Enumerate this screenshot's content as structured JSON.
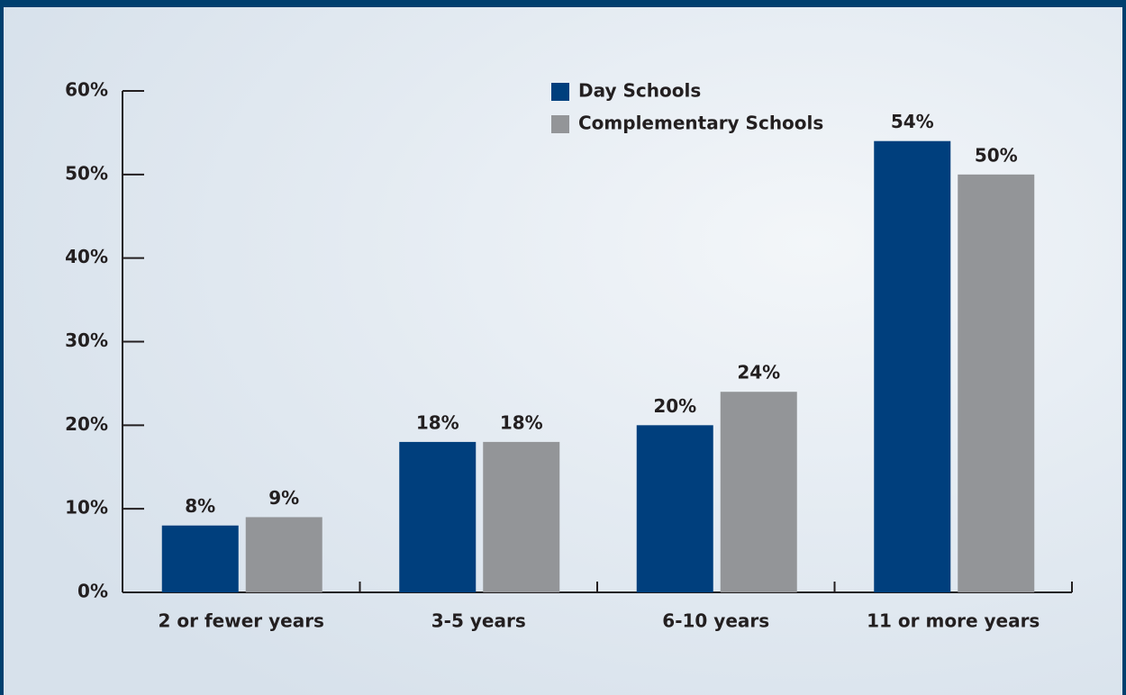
{
  "chart_data": {
    "type": "bar",
    "categories": [
      "2 or fewer years",
      "3-5 years",
      "6-10 years",
      "11 or more years"
    ],
    "series": [
      {
        "name": "Day Schools",
        "color": "#003f7d",
        "values": [
          8,
          18,
          20,
          54
        ],
        "value_labels": [
          "8%",
          "18%",
          "20%",
          "54%"
        ]
      },
      {
        "name": "Complementary Schools",
        "color": "#939598",
        "values": [
          9,
          18,
          24,
          50
        ],
        "value_labels": [
          "9%",
          "18%",
          "24%",
          "50%"
        ]
      }
    ],
    "ylim": [
      0,
      60
    ],
    "yticks": [
      {
        "value": 0,
        "label": "0%"
      },
      {
        "value": 10,
        "label": "10%"
      },
      {
        "value": 20,
        "label": "20%"
      },
      {
        "value": 30,
        "label": "30%"
      },
      {
        "value": 40,
        "label": "40%"
      },
      {
        "value": 50,
        "label": "50%"
      },
      {
        "value": 60,
        "label": "60%"
      }
    ],
    "grid": false
  }
}
